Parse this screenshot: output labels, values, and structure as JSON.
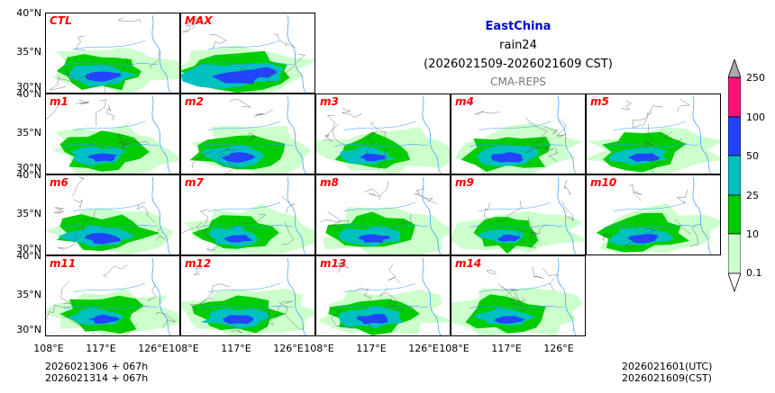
{
  "title": {
    "region": "EastChina",
    "variable": "rain24",
    "period": "(2026021509-2026021609 CST)",
    "model": "CMA-REPS"
  },
  "panels": [
    {
      "label": "CTL",
      "intensity": 0.9
    },
    {
      "label": "MAX",
      "intensity": 1.3
    },
    {
      "label": "m1",
      "intensity": 0.8
    },
    {
      "label": "m2",
      "intensity": 0.85
    },
    {
      "label": "m3",
      "intensity": 0.7
    },
    {
      "label": "m4",
      "intensity": 0.9
    },
    {
      "label": "m5",
      "intensity": 0.8
    },
    {
      "label": "m6",
      "intensity": 0.95
    },
    {
      "label": "m7",
      "intensity": 0.75
    },
    {
      "label": "m8",
      "intensity": 0.8
    },
    {
      "label": "m9",
      "intensity": 0.6
    },
    {
      "label": "m10",
      "intensity": 0.85
    },
    {
      "label": "m11",
      "intensity": 0.8
    },
    {
      "label": "m12",
      "intensity": 0.85
    },
    {
      "label": "m13",
      "intensity": 0.9
    },
    {
      "label": "m14",
      "intensity": 0.75
    }
  ],
  "axes": {
    "lat_labels": [
      "40°N",
      "35°N",
      "30°N"
    ],
    "lon_labels": [
      "108°E",
      "117°E",
      "126°E"
    ]
  },
  "colorbar": {
    "levels": [
      "0.1",
      "10",
      "25",
      "50",
      "100",
      "250"
    ],
    "colors": [
      "#ccffcc",
      "#00cc00",
      "#00c0c0",
      "#2244ff",
      "#ff1177"
    ],
    "extend_colors": {
      "under": "#ffffff",
      "over": "#aaaaaa"
    }
  },
  "footer": {
    "init_line1": "2026021306  +  067h",
    "init_line2": "2026021314  +  067h",
    "valid_utc": "2026021601(UTC)",
    "valid_cst": "2026021609(CST)"
  }
}
